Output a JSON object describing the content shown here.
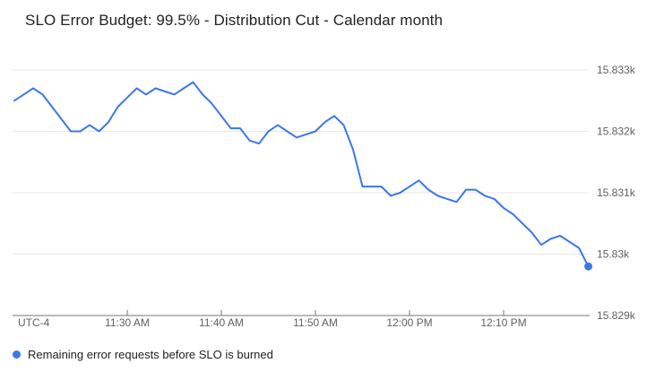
{
  "colors": {
    "line": "#3b78e7",
    "grid": "#e6e6e6",
    "axis": "#757575",
    "tick_text": "#616161",
    "title_text": "#202124"
  },
  "chart_data": {
    "type": "line",
    "title": "SLO Error Budget: 99.5% - Distribution Cut - Calendar month",
    "x_axis_note": "UTC-4",
    "x_ticks": [
      "11:30 AM",
      "11:40 AM",
      "11:50 AM",
      "12:00 PM",
      "12:10 PM"
    ],
    "y_ticks": [
      {
        "label": "15.833k",
        "value": 15833
      },
      {
        "label": "15.832k",
        "value": 15832
      },
      {
        "label": "15.831k",
        "value": 15831
      },
      {
        "label": "15.83k",
        "value": 15830
      },
      {
        "label": "15.829k",
        "value": 15829
      }
    ],
    "ylim": [
      15829,
      15833
    ],
    "x_range": [
      "11:18 AM",
      "12:19 PM"
    ],
    "grid": true,
    "legend_position": "bottom-left",
    "end_point_marker": true,
    "series": [
      {
        "name": "Remaining error requests before SLO is burned",
        "color": "#3b78e7",
        "points": [
          [
            "11:18 AM",
            15832.5
          ],
          [
            "11:19 AM",
            15832.6
          ],
          [
            "11:20 AM",
            15832.7
          ],
          [
            "11:21 AM",
            15832.6
          ],
          [
            "11:22 AM",
            15832.4
          ],
          [
            "11:23 AM",
            15832.2
          ],
          [
            "11:24 AM",
            15832.0
          ],
          [
            "11:25 AM",
            15832.0
          ],
          [
            "11:26 AM",
            15832.1
          ],
          [
            "11:27 AM",
            15832.0
          ],
          [
            "11:28 AM",
            15832.15
          ],
          [
            "11:29 AM",
            15832.4
          ],
          [
            "11:30 AM",
            15832.55
          ],
          [
            "11:31 AM",
            15832.7
          ],
          [
            "11:32 AM",
            15832.6
          ],
          [
            "11:33 AM",
            15832.7
          ],
          [
            "11:34 AM",
            15832.65
          ],
          [
            "11:35 AM",
            15832.6
          ],
          [
            "11:36 AM",
            15832.7
          ],
          [
            "11:37 AM",
            15832.8
          ],
          [
            "11:38 AM",
            15832.6
          ],
          [
            "11:39 AM",
            15832.45
          ],
          [
            "11:40 AM",
            15832.25
          ],
          [
            "11:41 AM",
            15832.05
          ],
          [
            "11:42 AM",
            15832.05
          ],
          [
            "11:43 AM",
            15831.85
          ],
          [
            "11:44 AM",
            15831.8
          ],
          [
            "11:45 AM",
            15832.0
          ],
          [
            "11:46 AM",
            15832.1
          ],
          [
            "11:47 AM",
            15832.0
          ],
          [
            "11:48 AM",
            15831.9
          ],
          [
            "11:49 AM",
            15831.95
          ],
          [
            "11:50 AM",
            15832.0
          ],
          [
            "11:51 AM",
            15832.15
          ],
          [
            "11:52 AM",
            15832.25
          ],
          [
            "11:53 AM",
            15832.1
          ],
          [
            "11:54 AM",
            15831.7
          ],
          [
            "11:55 AM",
            15831.1
          ],
          [
            "11:56 AM",
            15831.1
          ],
          [
            "11:57 AM",
            15831.1
          ],
          [
            "11:58 AM",
            15830.95
          ],
          [
            "11:59 AM",
            15831.0
          ],
          [
            "12:00 PM",
            15831.1
          ],
          [
            "12:01 PM",
            15831.2
          ],
          [
            "12:02 PM",
            15831.05
          ],
          [
            "12:03 PM",
            15830.95
          ],
          [
            "12:04 PM",
            15830.9
          ],
          [
            "12:05 PM",
            15830.85
          ],
          [
            "12:06 PM",
            15831.05
          ],
          [
            "12:07 PM",
            15831.05
          ],
          [
            "12:08 PM",
            15830.95
          ],
          [
            "12:09 PM",
            15830.9
          ],
          [
            "12:10 PM",
            15830.75
          ],
          [
            "12:11 PM",
            15830.65
          ],
          [
            "12:12 PM",
            15830.5
          ],
          [
            "12:13 PM",
            15830.35
          ],
          [
            "12:14 PM",
            15830.15
          ],
          [
            "12:15 PM",
            15830.25
          ],
          [
            "12:16 PM",
            15830.3
          ],
          [
            "12:17 PM",
            15830.2
          ],
          [
            "12:18 PM",
            15830.1
          ],
          [
            "12:19 PM",
            15829.8
          ]
        ]
      }
    ]
  }
}
